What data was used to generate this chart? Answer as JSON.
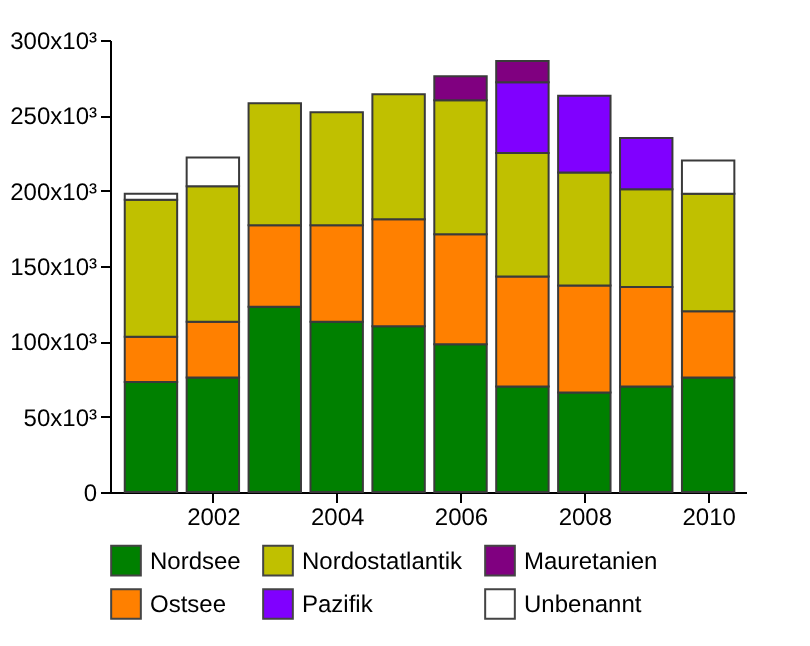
{
  "chart_data": {
    "type": "bar",
    "stacked": true,
    "x": [
      2001,
      2002,
      2003,
      2004,
      2005,
      2006,
      2007,
      2008,
      2009,
      2010
    ],
    "xlim": [
      2000.5,
      2010.45
    ],
    "xticks": [
      2002,
      2004,
      2006,
      2008,
      2010
    ],
    "ylim": [
      0,
      300000
    ],
    "yticks": [
      {
        "value": 0,
        "label": "0"
      },
      {
        "value": 50000,
        "label": "50x10³"
      },
      {
        "value": 100000,
        "label": "100x10³"
      },
      {
        "value": 150000,
        "label": "150x10³"
      },
      {
        "value": 200000,
        "label": "200x10³"
      },
      {
        "value": 250000,
        "label": "250x10³"
      },
      {
        "value": 300000,
        "label": "300x10³"
      }
    ],
    "series": [
      {
        "name": "Nordsee",
        "color": "#008000",
        "values": [
          73000,
          76000,
          123000,
          113000,
          110000,
          98000,
          70000,
          66000,
          70000,
          76000
        ]
      },
      {
        "name": "Ostsee",
        "color": "#ff8000",
        "values": [
          30000,
          37000,
          54000,
          64000,
          71000,
          73000,
          73000,
          71000,
          66000,
          44000
        ]
      },
      {
        "name": "Nordostatlantik",
        "color": "#c0c000",
        "values": [
          91000,
          90000,
          81000,
          75000,
          83000,
          89000,
          82000,
          75000,
          65000,
          78000
        ]
      },
      {
        "name": "Pazifik",
        "color": "#8000ff",
        "values": [
          null,
          null,
          null,
          null,
          null,
          null,
          47000,
          51000,
          34000,
          null
        ]
      },
      {
        "name": "Mauretanien",
        "color": "#800080",
        "values": [
          null,
          null,
          null,
          null,
          null,
          16000,
          14000,
          null,
          null,
          null
        ]
      },
      {
        "name": "Unbenannt",
        "color": "#ffffff",
        "values": [
          4000,
          19000,
          null,
          null,
          null,
          null,
          null,
          null,
          null,
          22000
        ]
      }
    ],
    "grid": false,
    "legend": "bottom"
  }
}
